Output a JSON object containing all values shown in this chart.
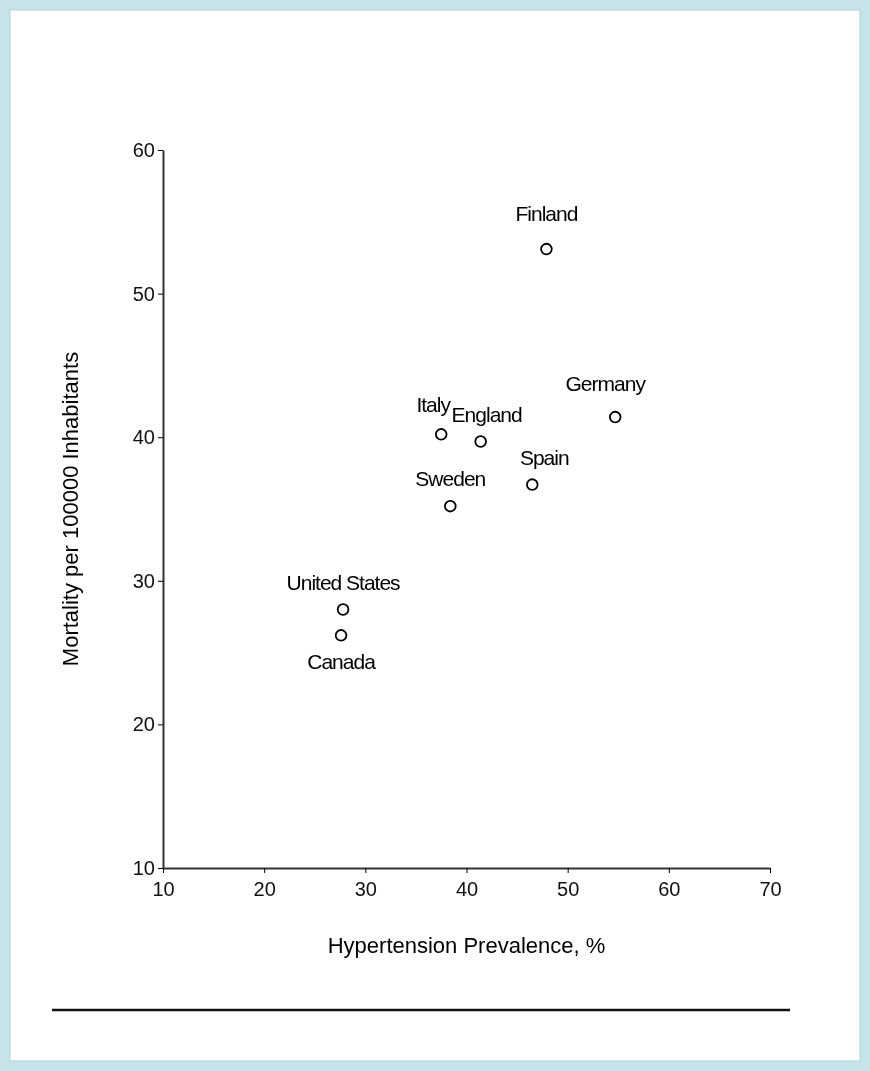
{
  "chart_data": {
    "type": "scatter",
    "xlabel": "Hypertension Prevalence, %",
    "ylabel": "Mortality per 100000 Inhabitants",
    "x": [
      47.9,
      54.7,
      37.5,
      41.4,
      46.5,
      38.4,
      27.8,
      27.6
    ],
    "values": [
      53.1,
      41.4,
      40.2,
      39.7,
      36.7,
      35.2,
      28.0,
      26.2
    ],
    "color": "#000000",
    "marker": "circle",
    "xlim": [
      10,
      70
    ],
    "xticks": [
      10,
      20,
      30,
      40,
      50,
      60,
      70
    ],
    "ylim": [
      10,
      60
    ],
    "yticks": [
      10,
      20,
      30,
      40,
      50,
      60
    ],
    "grid": false,
    "annotations": [
      {
        "text": "Finland",
        "x": 47.9,
        "y": 53.1
      },
      {
        "text": "Germany",
        "x": 54.7,
        "y": 41.4
      },
      {
        "text": "Italy",
        "x": 37.5,
        "y": 40.2
      },
      {
        "text": "England",
        "x": 41.4,
        "y": 39.7
      },
      {
        "text": "Spain",
        "x": 46.5,
        "y": 36.7
      },
      {
        "text": "Sweden",
        "x": 38.4,
        "y": 35.2
      },
      {
        "text": "United States",
        "x": 27.8,
        "y": 28.0
      },
      {
        "text": "Canada",
        "x": 27.6,
        "y": 26.2
      }
    ]
  }
}
